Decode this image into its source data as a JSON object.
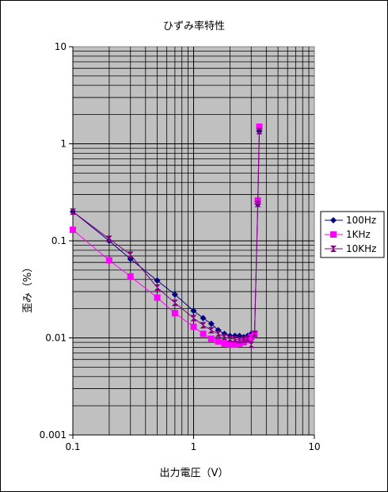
{
  "chart_data": {
    "type": "line",
    "title": "ひずみ率特性",
    "xlabel": "出力電圧（V）",
    "ylabel": "歪み（%）",
    "x_scale": "log",
    "y_scale": "log",
    "xlim": [
      0.1,
      10
    ],
    "ylim": [
      0.001,
      10
    ],
    "x_ticks": [
      "0.1",
      "1",
      "10"
    ],
    "y_ticks": [
      "10",
      "1",
      "0.1",
      "0.01",
      "0.001"
    ],
    "grid": true,
    "plot_background": "#c0c0c0",
    "legend_position": "right",
    "series": [
      {
        "name": "100Hz",
        "color": "#000080",
        "marker": "diamond",
        "x": [
          0.1,
          0.2,
          0.3,
          0.5,
          0.7,
          1.0,
          1.2,
          1.4,
          1.6,
          1.8,
          2.0,
          2.2,
          2.4,
          2.6,
          2.8,
          3.0,
          3.2,
          3.4,
          3.5
        ],
        "y": [
          0.2,
          0.1,
          0.065,
          0.039,
          0.028,
          0.019,
          0.016,
          0.014,
          0.012,
          0.011,
          0.0105,
          0.0105,
          0.0105,
          0.0102,
          0.0105,
          0.011,
          0.011,
          0.24,
          1.35
        ]
      },
      {
        "name": "1KHz",
        "color": "#ff00ff",
        "marker": "square",
        "x": [
          0.1,
          0.2,
          0.3,
          0.5,
          0.7,
          1.0,
          1.2,
          1.4,
          1.6,
          1.8,
          2.0,
          2.2,
          2.4,
          2.6,
          2.8,
          3.0,
          3.2,
          3.4,
          3.5
        ],
        "y": [
          0.13,
          0.063,
          0.043,
          0.026,
          0.018,
          0.013,
          0.011,
          0.0098,
          0.0092,
          0.0087,
          0.0086,
          0.0086,
          0.0087,
          0.009,
          0.0095,
          0.0102,
          0.011,
          0.26,
          1.5
        ]
      },
      {
        "name": "10KHz",
        "color": "#800080",
        "marker": "hourglass",
        "x": [
          0.1,
          0.2,
          0.3,
          0.5,
          0.7,
          1.0,
          1.2,
          1.4,
          1.6,
          1.8,
          2.0,
          2.2,
          2.4,
          2.6,
          2.8,
          3.0,
          3.2,
          3.4,
          3.5
        ],
        "y": [
          0.2,
          0.105,
          0.072,
          0.033,
          0.023,
          0.016,
          0.0135,
          0.012,
          0.011,
          0.0102,
          0.0098,
          0.0097,
          0.0095,
          0.0096,
          0.0098,
          0.0085,
          0.011,
          0.24,
          1.35
        ]
      }
    ]
  }
}
